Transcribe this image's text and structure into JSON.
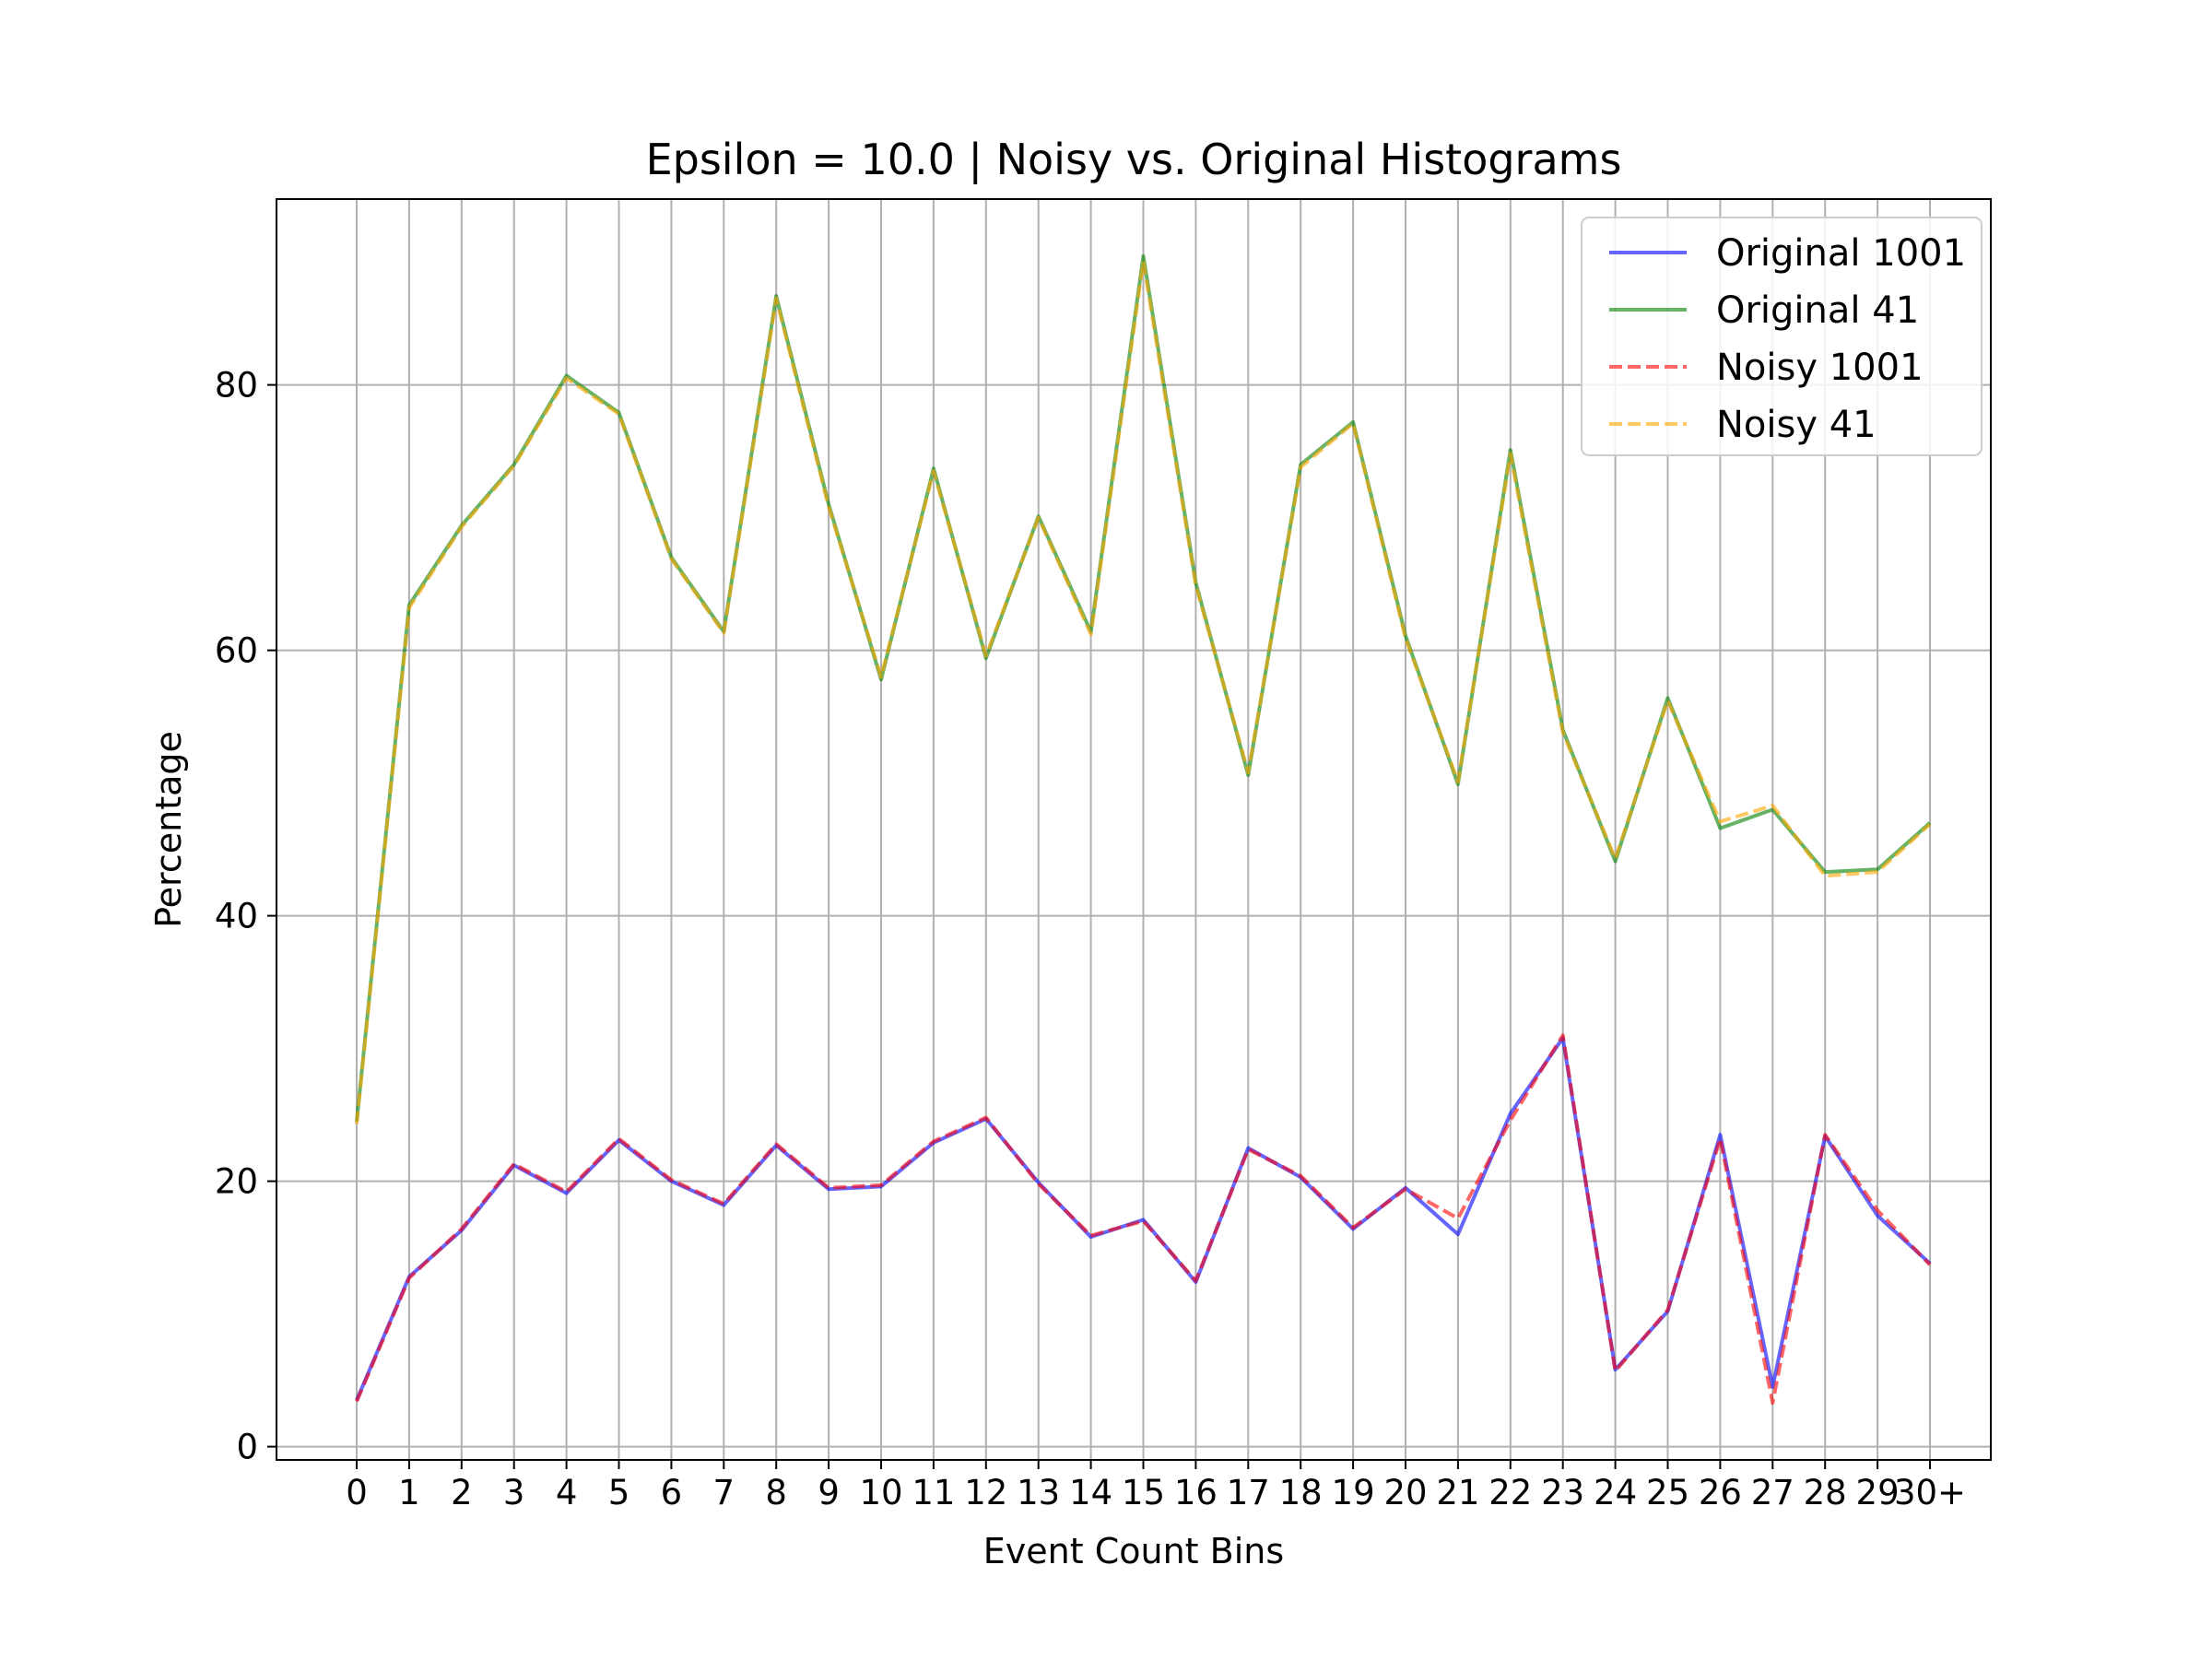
{
  "chart_data": {
    "type": "line",
    "title": "Epsilon = 10.0 | Noisy vs. Original Histograms",
    "xlabel": "Event Count Bins",
    "ylabel": "Percentage",
    "categories": [
      "0",
      "1",
      "2",
      "3",
      "4",
      "5",
      "6",
      "7",
      "8",
      "9",
      "10",
      "11",
      "12",
      "13",
      "14",
      "15",
      "16",
      "17",
      "18",
      "19",
      "20",
      "21",
      "22",
      "23",
      "24",
      "25",
      "26",
      "27",
      "28",
      "29",
      "30+"
    ],
    "yticks": [
      0,
      20,
      40,
      60,
      80
    ],
    "ylim": [
      -1,
      94
    ],
    "grid": true,
    "legend_position": "top-right",
    "series": [
      {
        "name": "Original 1001",
        "color": "#0000ff",
        "style": "solid",
        "values": [
          3.5,
          12.8,
          16.3,
          21.2,
          19.1,
          23.1,
          20.0,
          18.2,
          22.7,
          19.4,
          19.6,
          22.9,
          24.7,
          19.9,
          15.8,
          17.1,
          12.4,
          22.5,
          20.3,
          16.4,
          19.5,
          16.0,
          25.1,
          30.8,
          5.8,
          10.2,
          23.5,
          4.5,
          23.4,
          17.4,
          13.8
        ]
      },
      {
        "name": "Original 41",
        "color": "#008000",
        "style": "solid",
        "values": [
          24.5,
          63.4,
          69.4,
          74.0,
          80.7,
          77.9,
          67.0,
          61.4,
          86.7,
          71.0,
          57.8,
          73.7,
          59.4,
          70.1,
          61.4,
          89.7,
          65.1,
          50.6,
          74.0,
          77.2,
          61.1,
          49.9,
          75.1,
          54.0,
          44.1,
          56.4,
          46.6,
          48.0,
          43.3,
          43.5,
          47.0
        ]
      },
      {
        "name": "Noisy 1001",
        "color": "#ff0000",
        "style": "dashed",
        "values": [
          3.4,
          12.7,
          16.4,
          21.3,
          19.2,
          23.2,
          20.1,
          18.3,
          22.8,
          19.5,
          19.7,
          23.0,
          24.8,
          19.8,
          15.9,
          17.0,
          12.5,
          22.4,
          20.4,
          16.5,
          19.4,
          17.2,
          24.6,
          31.0,
          5.7,
          10.3,
          23.2,
          3.3,
          23.5,
          17.8,
          13.7
        ]
      },
      {
        "name": "Noisy 41",
        "color": "#ffa500",
        "style": "dashed",
        "values": [
          24.3,
          63.2,
          69.3,
          73.9,
          80.5,
          77.8,
          66.9,
          61.3,
          86.5,
          70.8,
          58.0,
          73.5,
          59.6,
          70.0,
          61.2,
          89.3,
          64.9,
          50.8,
          73.8,
          77.1,
          60.9,
          50.1,
          74.8,
          53.8,
          44.3,
          56.2,
          47.1,
          48.3,
          43.0,
          43.3,
          46.9
        ]
      }
    ]
  }
}
